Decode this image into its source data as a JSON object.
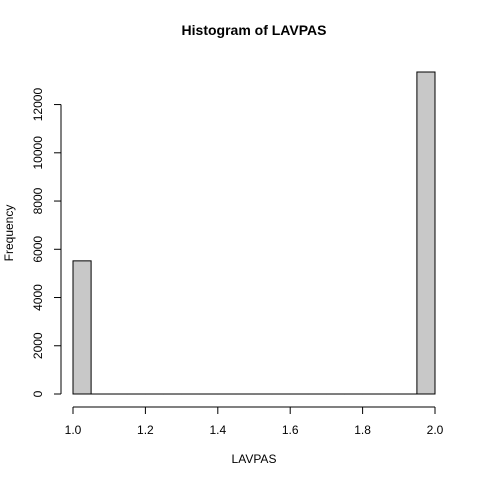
{
  "chart_data": {
    "type": "bar",
    "title": "Histogram of LAVPAS",
    "xlabel": "LAVPAS",
    "ylabel": "Frequency",
    "bin_width": 0.05,
    "bins": [
      {
        "x0": 1.0,
        "x1": 1.05,
        "count": 5520
      },
      {
        "x0": 1.05,
        "x1": 1.1,
        "count": 0
      },
      {
        "x0": 1.1,
        "x1": 1.15,
        "count": 0
      },
      {
        "x0": 1.15,
        "x1": 1.2,
        "count": 0
      },
      {
        "x0": 1.2,
        "x1": 1.25,
        "count": 0
      },
      {
        "x0": 1.25,
        "x1": 1.3,
        "count": 0
      },
      {
        "x0": 1.3,
        "x1": 1.35,
        "count": 0
      },
      {
        "x0": 1.35,
        "x1": 1.4,
        "count": 0
      },
      {
        "x0": 1.4,
        "x1": 1.45,
        "count": 0
      },
      {
        "x0": 1.45,
        "x1": 1.5,
        "count": 0
      },
      {
        "x0": 1.5,
        "x1": 1.55,
        "count": 0
      },
      {
        "x0": 1.55,
        "x1": 1.6,
        "count": 0
      },
      {
        "x0": 1.6,
        "x1": 1.65,
        "count": 0
      },
      {
        "x0": 1.65,
        "x1": 1.7,
        "count": 0
      },
      {
        "x0": 1.7,
        "x1": 1.75,
        "count": 0
      },
      {
        "x0": 1.75,
        "x1": 1.8,
        "count": 0
      },
      {
        "x0": 1.8,
        "x1": 1.85,
        "count": 0
      },
      {
        "x0": 1.85,
        "x1": 1.9,
        "count": 0
      },
      {
        "x0": 1.9,
        "x1": 1.95,
        "count": 0
      },
      {
        "x0": 1.95,
        "x1": 2.0,
        "count": 13350
      }
    ],
    "xlim": [
      1.0,
      2.0
    ],
    "ylim": [
      0,
      13350
    ],
    "xticks": [
      1.0,
      1.2,
      1.4,
      1.6,
      1.8,
      2.0
    ],
    "xtick_labels": [
      "1.0",
      "1.2",
      "1.4",
      "1.6",
      "1.8",
      "2.0"
    ],
    "yticks": [
      0,
      2000,
      4000,
      6000,
      8000,
      10000,
      12000
    ],
    "ytick_labels": [
      "0",
      "2000",
      "4000",
      "6000",
      "8000",
      "10000",
      "12000"
    ],
    "grid": false,
    "colors": {
      "bar_fill": "#c8c8c8",
      "bar_stroke": "#000000",
      "axis": "#000000",
      "background": "#ffffff"
    }
  }
}
